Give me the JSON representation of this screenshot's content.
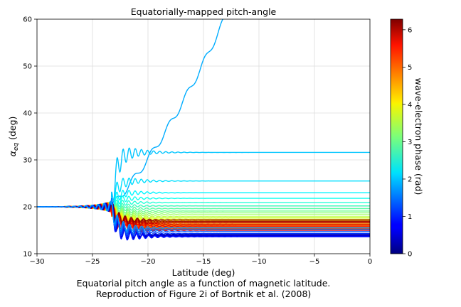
{
  "chart_data": {
    "type": "line",
    "title": "Equatorially-mapped pitch-angle",
    "xlabel": "Latitude (deg)",
    "ylabel_main": "α",
    "ylabel_sub": "eq",
    "ylabel_unit": "(deg)",
    "xlim": [
      -30,
      0
    ],
    "ylim": [
      10,
      60
    ],
    "xticks": [
      -30,
      -25,
      -20,
      -15,
      -10,
      -5,
      0
    ],
    "xtick_labels": [
      "−30",
      "−25",
      "−20",
      "−15",
      "−10",
      "−5",
      "0"
    ],
    "yticks": [
      10,
      20,
      30,
      40,
      50,
      60
    ],
    "ytick_labels": [
      "10",
      "20",
      "30",
      "40",
      "50",
      "60"
    ],
    "grid": true,
    "initial_pitch_angle": 20,
    "colormap": "jet",
    "colorbar": {
      "label": "wave-electron phase (rad)",
      "range": [
        0,
        6.283
      ],
      "ticks": [
        0,
        1,
        2,
        3,
        4,
        5,
        6
      ],
      "tick_labels": [
        "0",
        "1",
        "2",
        "3",
        "4",
        "5",
        "6"
      ]
    },
    "series": [
      {
        "phase": 1.85,
        "final_pitch_angle": 60,
        "escapes": true
      },
      {
        "phase": 2.0,
        "final_pitch_angle": 31.6
      },
      {
        "phase": 2.15,
        "final_pitch_angle": 25.5
      },
      {
        "phase": 2.3,
        "final_pitch_angle": 23.0
      },
      {
        "phase": 2.45,
        "final_pitch_angle": 21.8
      },
      {
        "phase": 2.6,
        "final_pitch_angle": 20.9
      },
      {
        "phase": 2.75,
        "final_pitch_angle": 20.2
      },
      {
        "phase": 2.9,
        "final_pitch_angle": 19.6
      },
      {
        "phase": 3.05,
        "final_pitch_angle": 19.1
      },
      {
        "phase": 3.2,
        "final_pitch_angle": 18.7
      },
      {
        "phase": 3.35,
        "final_pitch_angle": 18.3
      },
      {
        "phase": 3.5,
        "final_pitch_angle": 17.9
      },
      {
        "phase": 3.65,
        "final_pitch_angle": 17.6
      },
      {
        "phase": 3.8,
        "final_pitch_angle": 17.3
      },
      {
        "phase": 3.95,
        "final_pitch_angle": 17.0
      },
      {
        "phase": 4.1,
        "final_pitch_angle": 16.8
      },
      {
        "phase": 4.25,
        "final_pitch_angle": 16.55
      },
      {
        "phase": 4.4,
        "final_pitch_angle": 16.3
      },
      {
        "phase": 4.55,
        "final_pitch_angle": 16.1
      },
      {
        "phase": 4.7,
        "final_pitch_angle": 15.9
      },
      {
        "phase": 4.85,
        "final_pitch_angle": 15.7
      },
      {
        "phase": 5.0,
        "final_pitch_angle": 15.5
      },
      {
        "phase": 5.15,
        "final_pitch_angle": 15.3
      },
      {
        "phase": 5.3,
        "final_pitch_angle": 15.15
      },
      {
        "phase": 5.45,
        "final_pitch_angle": 15.0
      },
      {
        "phase": 5.6,
        "final_pitch_angle": 15.9
      },
      {
        "phase": 5.75,
        "final_pitch_angle": 16.3
      },
      {
        "phase": 5.9,
        "final_pitch_angle": 16.6
      },
      {
        "phase": 6.05,
        "final_pitch_angle": 16.9
      },
      {
        "phase": 6.2,
        "final_pitch_angle": 17.2
      },
      {
        "phase": 0.1,
        "final_pitch_angle": 14.1
      },
      {
        "phase": 0.3,
        "final_pitch_angle": 14.0
      },
      {
        "phase": 0.5,
        "final_pitch_angle": 13.9
      },
      {
        "phase": 0.7,
        "final_pitch_angle": 13.75
      },
      {
        "phase": 0.9,
        "final_pitch_angle": 13.6
      },
      {
        "phase": 1.1,
        "final_pitch_angle": 14.3
      },
      {
        "phase": 1.3,
        "final_pitch_angle": 14.7
      },
      {
        "phase": 1.5,
        "final_pitch_angle": 15.1
      },
      {
        "phase": 1.7,
        "final_pitch_angle": 15.5
      }
    ]
  },
  "caption": {
    "line1": "Equatorial pitch angle as a function of magnetic latitude.",
    "line2": "Reproduction of Figure 2i of Bortnik et al. (2008)"
  }
}
